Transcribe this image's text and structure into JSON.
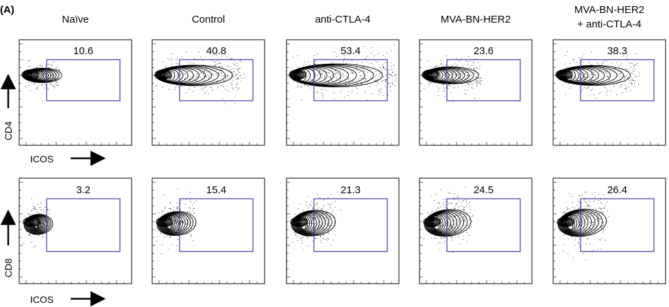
{
  "figure": {
    "panel_label": "(A)",
    "columns": [
      "Naïve",
      "Control",
      "anti-CTLA-4",
      "MVA-BN-HER2",
      "MVA-BN-HER2\n+ anti-CTLA-4"
    ]
  },
  "chart_data": {
    "type": "scatter",
    "subtype": "flow cytometry contour plots with gates",
    "panel_label": "(A)",
    "columns": [
      "Naïve",
      "Control",
      "anti-CTLA-4",
      "MVA-BN-HER2",
      "MVA-BN-HER2\n+ anti-CTLA-4"
    ],
    "x_axis_label": "ICOS",
    "rows": [
      {
        "y_axis_label": "CD4",
        "gate_percentages": [
          10.6,
          40.8,
          53.4,
          23.6,
          38.3
        ]
      },
      {
        "y_axis_label": "CD8",
        "gate_percentages": [
          3.2,
          15.4,
          21.3,
          24.5,
          26.4
        ]
      }
    ],
    "gate_color": "#3a3aa0",
    "contour_color": "#000000"
  }
}
